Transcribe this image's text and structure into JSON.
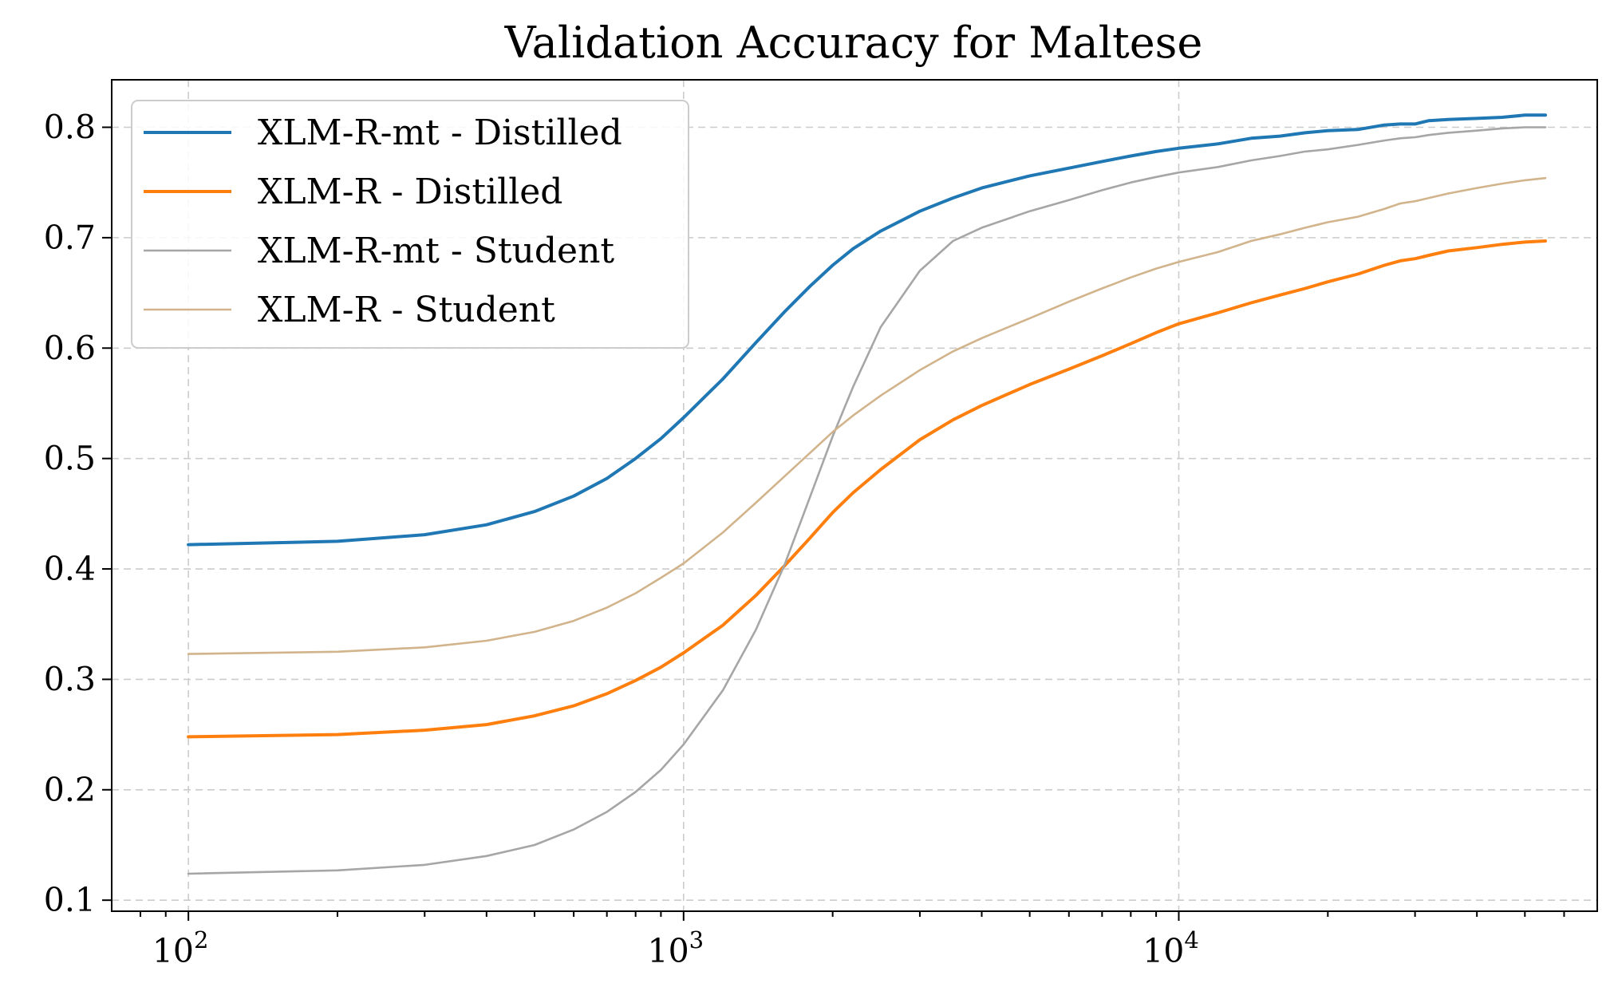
{
  "chart_data": {
    "type": "line",
    "title": "Validation Accuracy for Maltese",
    "xlabel": "",
    "ylabel": "",
    "xscale": "log",
    "xlim": [
      70,
      70000
    ],
    "ylim": [
      0.09,
      0.843
    ],
    "grid": true,
    "legend_position": "upper left",
    "x_ticks": [
      {
        "value": 100,
        "base": "10",
        "exp": "2"
      },
      {
        "value": 1000,
        "base": "10",
        "exp": "3"
      },
      {
        "value": 10000,
        "base": "10",
        "exp": "4"
      }
    ],
    "y_ticks": [
      {
        "value": 0.1,
        "label": "0.1"
      },
      {
        "value": 0.2,
        "label": "0.2"
      },
      {
        "value": 0.3,
        "label": "0.3"
      },
      {
        "value": 0.4,
        "label": "0.4"
      },
      {
        "value": 0.5,
        "label": "0.5"
      },
      {
        "value": 0.6,
        "label": "0.6"
      },
      {
        "value": 0.7,
        "label": "0.7"
      },
      {
        "value": 0.8,
        "label": "0.8"
      }
    ],
    "series": [
      {
        "name": "XLM-R-mt - Distilled",
        "color": "#1f77b4",
        "width": "thick",
        "points": [
          [
            100,
            0.422
          ],
          [
            200,
            0.425
          ],
          [
            300,
            0.431
          ],
          [
            400,
            0.44
          ],
          [
            500,
            0.452
          ],
          [
            600,
            0.466
          ],
          [
            700,
            0.482
          ],
          [
            800,
            0.5
          ],
          [
            900,
            0.518
          ],
          [
            1000,
            0.537
          ],
          [
            1200,
            0.572
          ],
          [
            1400,
            0.605
          ],
          [
            1600,
            0.633
          ],
          [
            1800,
            0.656
          ],
          [
            2000,
            0.675
          ],
          [
            2200,
            0.69
          ],
          [
            2500,
            0.706
          ],
          [
            3000,
            0.724
          ],
          [
            3500,
            0.736
          ],
          [
            4000,
            0.745
          ],
          [
            5000,
            0.756
          ],
          [
            6000,
            0.763
          ],
          [
            7000,
            0.769
          ],
          [
            8000,
            0.774
          ],
          [
            9000,
            0.778
          ],
          [
            10000,
            0.781
          ],
          [
            12000,
            0.785
          ],
          [
            14000,
            0.79
          ],
          [
            16000,
            0.792
          ],
          [
            18000,
            0.795
          ],
          [
            20000,
            0.797
          ],
          [
            23000,
            0.798
          ],
          [
            26000,
            0.802
          ],
          [
            28000,
            0.803
          ],
          [
            30000,
            0.803
          ],
          [
            32000,
            0.806
          ],
          [
            35000,
            0.807
          ],
          [
            40000,
            0.808
          ],
          [
            45000,
            0.809
          ],
          [
            50000,
            0.811
          ],
          [
            55000,
            0.811
          ]
        ]
      },
      {
        "name": "XLM-R - Distilled",
        "color": "#ff7f0e",
        "width": "thick",
        "points": [
          [
            100,
            0.248
          ],
          [
            200,
            0.25
          ],
          [
            300,
            0.254
          ],
          [
            400,
            0.259
          ],
          [
            500,
            0.267
          ],
          [
            600,
            0.276
          ],
          [
            700,
            0.287
          ],
          [
            800,
            0.299
          ],
          [
            900,
            0.311
          ],
          [
            1000,
            0.324
          ],
          [
            1200,
            0.349
          ],
          [
            1400,
            0.376
          ],
          [
            1600,
            0.403
          ],
          [
            1800,
            0.428
          ],
          [
            2000,
            0.451
          ],
          [
            2200,
            0.469
          ],
          [
            2500,
            0.49
          ],
          [
            3000,
            0.517
          ],
          [
            3500,
            0.535
          ],
          [
            4000,
            0.548
          ],
          [
            5000,
            0.567
          ],
          [
            6000,
            0.581
          ],
          [
            7000,
            0.593
          ],
          [
            8000,
            0.604
          ],
          [
            9000,
            0.614
          ],
          [
            10000,
            0.622
          ],
          [
            12000,
            0.632
          ],
          [
            14000,
            0.641
          ],
          [
            16000,
            0.648
          ],
          [
            18000,
            0.654
          ],
          [
            20000,
            0.66
          ],
          [
            23000,
            0.667
          ],
          [
            26000,
            0.675
          ],
          [
            28000,
            0.679
          ],
          [
            30000,
            0.681
          ],
          [
            32000,
            0.684
          ],
          [
            35000,
            0.688
          ],
          [
            40000,
            0.691
          ],
          [
            45000,
            0.694
          ],
          [
            50000,
            0.696
          ],
          [
            55000,
            0.697
          ]
        ]
      },
      {
        "name": "XLM-R-mt - Student",
        "color": "#a6a6a6",
        "width": "thin",
        "points": [
          [
            100,
            0.124
          ],
          [
            200,
            0.127
          ],
          [
            300,
            0.132
          ],
          [
            400,
            0.14
          ],
          [
            500,
            0.15
          ],
          [
            600,
            0.164
          ],
          [
            700,
            0.18
          ],
          [
            800,
            0.198
          ],
          [
            900,
            0.218
          ],
          [
            1000,
            0.241
          ],
          [
            1200,
            0.29
          ],
          [
            1400,
            0.345
          ],
          [
            1600,
            0.404
          ],
          [
            1800,
            0.465
          ],
          [
            2000,
            0.52
          ],
          [
            2200,
            0.565
          ],
          [
            2500,
            0.619
          ],
          [
            3000,
            0.67
          ],
          [
            3500,
            0.697
          ],
          [
            4000,
            0.709
          ],
          [
            5000,
            0.724
          ],
          [
            6000,
            0.734
          ],
          [
            7000,
            0.743
          ],
          [
            8000,
            0.75
          ],
          [
            9000,
            0.755
          ],
          [
            10000,
            0.759
          ],
          [
            12000,
            0.764
          ],
          [
            14000,
            0.77
          ],
          [
            16000,
            0.774
          ],
          [
            18000,
            0.778
          ],
          [
            20000,
            0.78
          ],
          [
            23000,
            0.784
          ],
          [
            26000,
            0.788
          ],
          [
            28000,
            0.79
          ],
          [
            30000,
            0.791
          ],
          [
            32000,
            0.793
          ],
          [
            35000,
            0.795
          ],
          [
            40000,
            0.797
          ],
          [
            45000,
            0.799
          ],
          [
            50000,
            0.8
          ],
          [
            55000,
            0.8
          ]
        ]
      },
      {
        "name": "XLM-R - Student",
        "color": "#d2b48c",
        "width": "thin",
        "points": [
          [
            100,
            0.323
          ],
          [
            200,
            0.325
          ],
          [
            300,
            0.329
          ],
          [
            400,
            0.335
          ],
          [
            500,
            0.343
          ],
          [
            600,
            0.353
          ],
          [
            700,
            0.365
          ],
          [
            800,
            0.378
          ],
          [
            900,
            0.392
          ],
          [
            1000,
            0.405
          ],
          [
            1200,
            0.433
          ],
          [
            1400,
            0.46
          ],
          [
            1600,
            0.484
          ],
          [
            1800,
            0.505
          ],
          [
            2000,
            0.524
          ],
          [
            2200,
            0.539
          ],
          [
            2500,
            0.557
          ],
          [
            3000,
            0.58
          ],
          [
            3500,
            0.597
          ],
          [
            4000,
            0.609
          ],
          [
            5000,
            0.627
          ],
          [
            6000,
            0.642
          ],
          [
            7000,
            0.654
          ],
          [
            8000,
            0.664
          ],
          [
            9000,
            0.672
          ],
          [
            10000,
            0.678
          ],
          [
            12000,
            0.687
          ],
          [
            14000,
            0.697
          ],
          [
            16000,
            0.703
          ],
          [
            18000,
            0.709
          ],
          [
            20000,
            0.714
          ],
          [
            23000,
            0.719
          ],
          [
            26000,
            0.726
          ],
          [
            28000,
            0.731
          ],
          [
            30000,
            0.733
          ],
          [
            32000,
            0.736
          ],
          [
            35000,
            0.74
          ],
          [
            40000,
            0.745
          ],
          [
            45000,
            0.749
          ],
          [
            50000,
            0.752
          ],
          [
            55000,
            0.754
          ]
        ]
      }
    ]
  }
}
